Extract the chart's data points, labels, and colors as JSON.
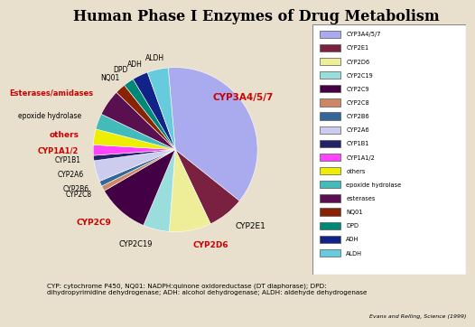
{
  "title": "Human Phase I Enzymes of Drug Metabolism",
  "footnote": "CYP: cytochrome P450, NQ01: NADPH:quinone oxidoreductase (DT diaphorase); DPD:\ndihydropyrimidine dehydrogenase; ADH: alcohol dehydrogenase; ALDH: aldehyde dehydrogenase",
  "source": "Evans and Relling, Science (1999)",
  "labels": [
    "CYP3A4/5/7",
    "CYP2E1",
    "CYP2D6",
    "CYP2C19",
    "CYP2C9",
    "CYP2C8",
    "CYP2B6",
    "CYP2A6",
    "CYP1B1",
    "CYP1A1/2",
    "others",
    "epoxide hydrolase",
    "esterases",
    "NQ01",
    "DPD",
    "ADH",
    "ALDH"
  ],
  "pie_labels": [
    "CYP3A4/5/7",
    "CYP2E1",
    "CYP2D6",
    "CYP2C19",
    "CYP2C9",
    "CYP2C8",
    "CYP2B6",
    "CYP2A6",
    "CYP1B1",
    "CYP1A1/2",
    "others",
    "epoxide hydrolase",
    "Esterases/amidases",
    "NQ01",
    "DPD",
    "ADH",
    "ALDH"
  ],
  "values": [
    36,
    7,
    8,
    5,
    10,
    1,
    1,
    4,
    1,
    2,
    3,
    3,
    5,
    2,
    2,
    3,
    4
  ],
  "colors": [
    "#aaaaee",
    "#7a2040",
    "#eeee99",
    "#99dddd",
    "#440044",
    "#cc8866",
    "#336699",
    "#ccccee",
    "#222266",
    "#ff44ff",
    "#eeee00",
    "#44bbbb",
    "#5a1050",
    "#882200",
    "#008877",
    "#112288",
    "#66ccdd"
  ],
  "pie_label_colors": [
    "#cc0000",
    "#000000",
    "#cc0000",
    "#000000",
    "#cc0000",
    "#000000",
    "#000000",
    "#000000",
    "#000000",
    "#cc0000",
    "#cc0000",
    "#000000",
    "#cc0000",
    "#000000",
    "#000000",
    "#000000",
    "#000000"
  ],
  "startangle": 95,
  "bg_color": "#e8e0cc"
}
